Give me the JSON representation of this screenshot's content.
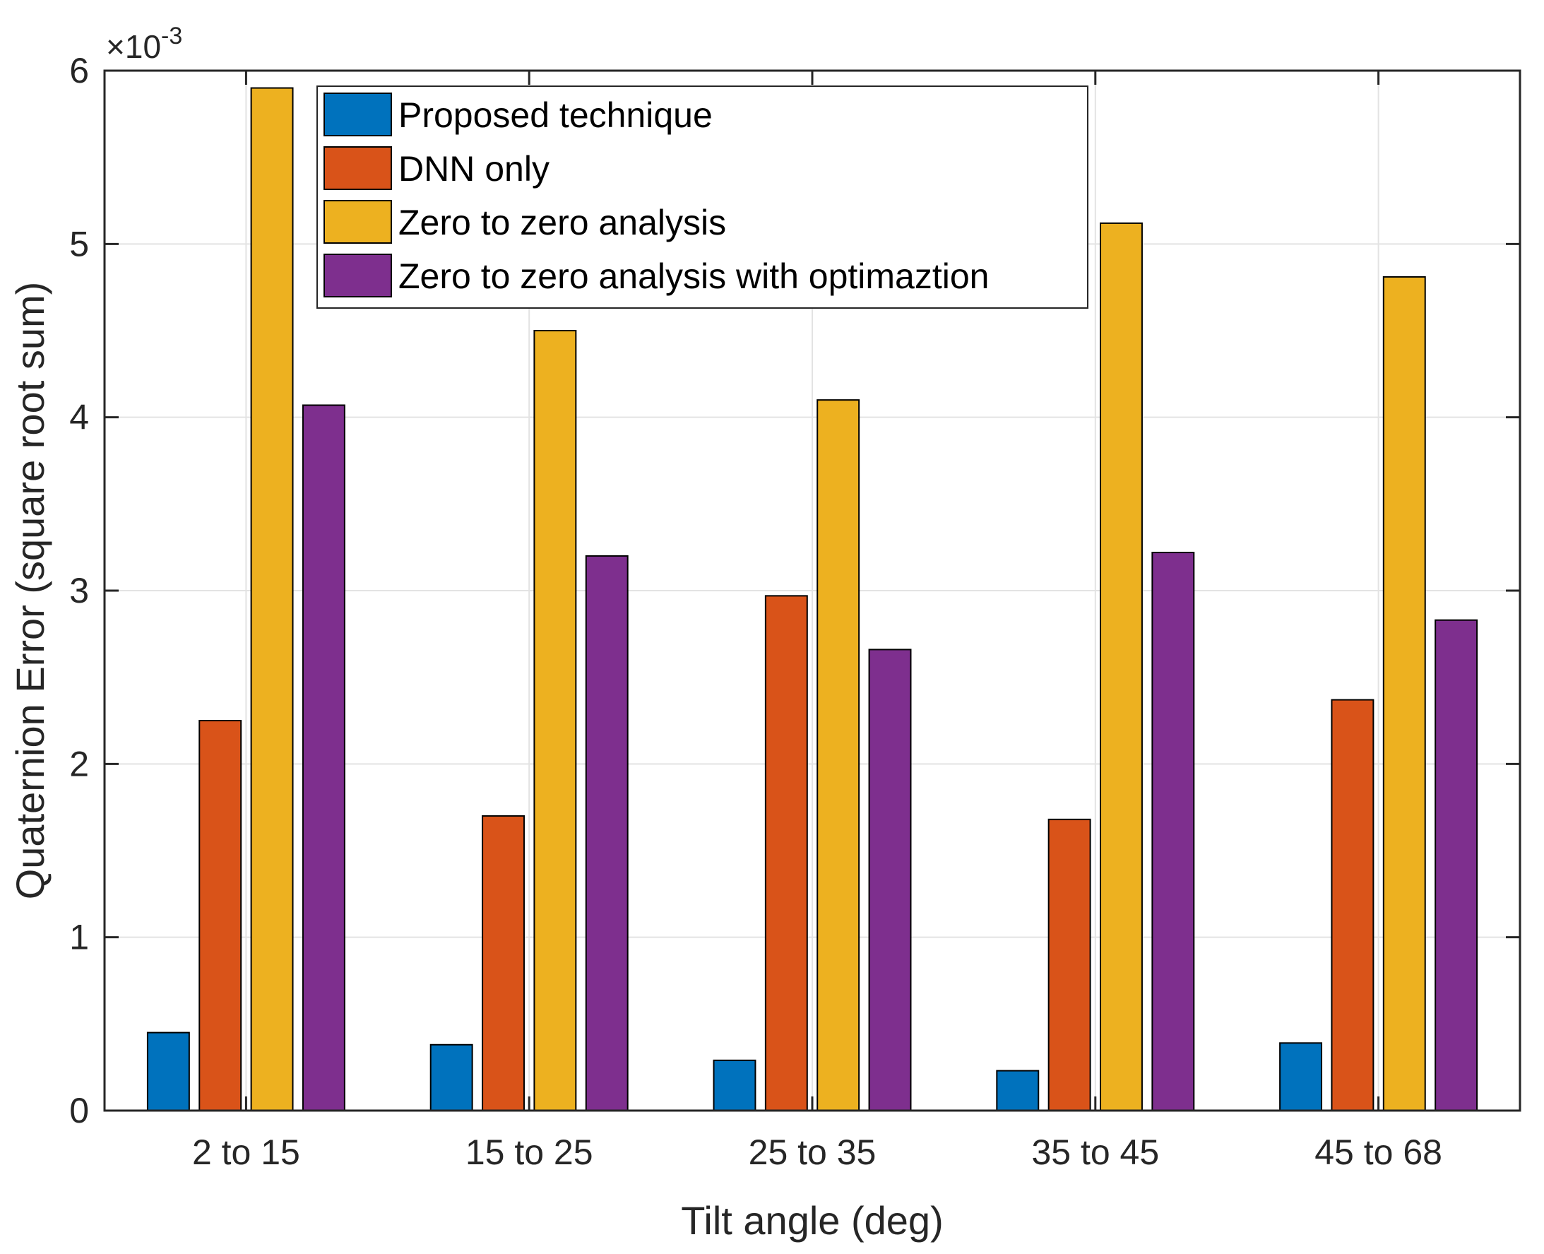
{
  "chart_data": {
    "type": "bar",
    "title": "",
    "xlabel": "Tilt angle (deg)",
    "ylabel": "Quaternion Error (square root sum)",
    "y_exponent_label": "×10",
    "y_exponent_power": "-3",
    "ylim": [
      0,
      6
    ],
    "yticks": [
      0,
      1,
      2,
      3,
      4,
      5,
      6
    ],
    "ytick_labels": [
      "0",
      "1",
      "2",
      "3",
      "4",
      "5",
      "6"
    ],
    "grid": true,
    "legend_position": "top-center",
    "categories": [
      "2 to 15",
      "15 to 25",
      "25 to 35",
      "35 to 45",
      "45 to 68"
    ],
    "series": [
      {
        "name": "Proposed technique",
        "color": "#0072BD",
        "values": [
          0.45,
          0.38,
          0.29,
          0.23,
          0.39
        ]
      },
      {
        "name": "DNN only",
        "color": "#D95319",
        "values": [
          2.25,
          1.7,
          2.97,
          1.68,
          2.37
        ]
      },
      {
        "name": "Zero to zero analysis",
        "color": "#EDB120",
        "values": [
          5.9,
          4.5,
          4.1,
          5.12,
          4.81
        ]
      },
      {
        "name": "Zero to zero analysis with optimaztion",
        "color": "#7E2F8E",
        "values": [
          4.07,
          3.2,
          2.66,
          3.22,
          2.83
        ]
      }
    ]
  }
}
